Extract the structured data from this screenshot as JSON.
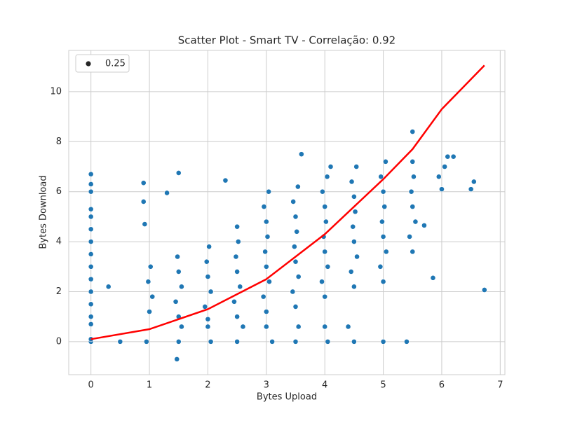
{
  "chart_data": {
    "type": "scatter",
    "title": "Scatter Plot - Smart TV - Correlação: 0.92",
    "xlabel": "Bytes Upload",
    "ylabel": "Bytes Download",
    "xlim": [
      -0.38,
      7.08
    ],
    "ylim": [
      -1.32,
      11.65
    ],
    "xticks": [
      0,
      1,
      2,
      3,
      4,
      5,
      6,
      7
    ],
    "yticks": [
      0,
      2,
      4,
      6,
      8,
      10
    ],
    "grid": true,
    "legend": "upper left",
    "series": [
      {
        "name": "0.25",
        "color": "#1f77b4",
        "x": [
          0,
          0,
          0,
          0,
          0,
          0,
          0,
          0,
          0,
          0,
          0,
          0,
          0,
          0,
          0,
          0,
          0.5,
          0.95,
          1.5,
          2.05,
          2.5,
          3.1,
          3.5,
          4.05,
          4.5,
          5.0,
          5.4,
          1.55,
          2.0,
          2.6,
          3.0,
          3.55,
          4.0,
          4.4,
          1.47,
          6.73,
          0.3,
          0.9,
          0.9,
          0.92,
          1.3,
          1.5,
          2.3,
          5.85,
          1.0,
          1.05,
          0.98,
          1.02,
          1.5,
          1.45,
          1.55,
          1.5,
          1.48,
          2.0,
          1.95,
          2.05,
          2.0,
          1.98,
          2.02,
          2.5,
          2.45,
          2.55,
          2.5,
          2.48,
          2.52,
          2.5,
          3.0,
          2.95,
          3.05,
          3.0,
          2.98,
          3.02,
          3.0,
          2.96,
          3.04,
          3.5,
          3.45,
          3.55,
          3.5,
          3.48,
          3.52,
          3.5,
          3.46,
          3.54,
          3.6,
          4.0,
          3.95,
          4.05,
          4.0,
          3.98,
          4.02,
          4.0,
          3.96,
          4.04,
          4.1,
          4.5,
          4.45,
          4.55,
          4.5,
          4.48,
          4.52,
          4.5,
          4.46,
          4.54,
          5.0,
          4.95,
          5.05,
          5.0,
          4.98,
          5.02,
          5.0,
          4.96,
          5.04,
          5.5,
          5.45,
          5.55,
          5.5,
          5.48,
          5.52,
          5.5,
          5.5,
          6.0,
          5.95,
          6.05,
          6.1,
          6.5,
          6.55,
          6.2,
          5.7
        ],
        "values": [
          0,
          0.1,
          0.7,
          1.0,
          1.5,
          2.0,
          2.5,
          3.0,
          3.5,
          4.0,
          4.5,
          5.0,
          5.3,
          6.0,
          6.3,
          6.7,
          0,
          0,
          0,
          0,
          0,
          0,
          0,
          0,
          0,
          0,
          0,
          0.6,
          0.6,
          0.6,
          0.6,
          0.6,
          0.6,
          0.6,
          -0.7,
          2.07,
          2.2,
          6.35,
          5.6,
          4.7,
          5.95,
          6.75,
          6.45,
          2.55,
          1.2,
          1.8,
          2.4,
          3.0,
          1.0,
          1.6,
          2.2,
          2.8,
          3.4,
          0.9,
          1.4,
          2.0,
          2.6,
          3.2,
          3.8,
          1.0,
          1.6,
          2.2,
          2.8,
          3.4,
          4.0,
          4.6,
          1.2,
          1.8,
          2.4,
          3.0,
          3.6,
          4.2,
          4.8,
          5.4,
          6.0,
          1.4,
          2.0,
          2.6,
          3.2,
          3.8,
          4.4,
          5.0,
          5.6,
          6.2,
          7.5,
          1.8,
          2.4,
          3.0,
          3.6,
          4.2,
          4.8,
          5.4,
          6.0,
          6.6,
          7.0,
          2.2,
          2.8,
          3.4,
          4.0,
          4.6,
          5.2,
          5.8,
          6.4,
          7.0,
          2.4,
          3.0,
          3.6,
          4.2,
          4.8,
          5.4,
          6.0,
          6.6,
          7.2,
          3.6,
          4.2,
          4.8,
          5.4,
          6.0,
          6.6,
          7.2,
          8.4,
          6.1,
          6.6,
          7.0,
          7.4,
          6.1,
          6.4,
          7.4,
          4.65
        ]
      }
    ],
    "fit": {
      "color": "#ff0000",
      "x": [
        0,
        1,
        2,
        3,
        4,
        5,
        5.5,
        6,
        6.73
      ],
      "values": [
        0.1,
        0.5,
        1.3,
        2.5,
        4.3,
        6.5,
        7.7,
        9.3,
        11.05
      ]
    }
  }
}
